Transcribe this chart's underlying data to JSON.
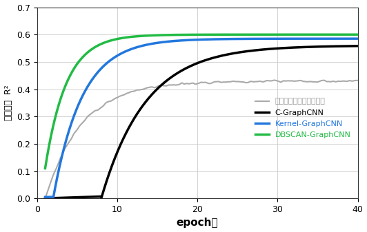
{
  "xlabel": "epoch数",
  "ylabel": "決定係数  R²",
  "xlim": [
    0,
    40
  ],
  "ylim": [
    0,
    0.7
  ],
  "xticks": [
    0,
    10,
    20,
    30,
    40
  ],
  "yticks": [
    0,
    0.1,
    0.2,
    0.3,
    0.4,
    0.5,
    0.6,
    0.7
  ],
  "series": {
    "neural": {
      "label": "ニューラルネットワーク",
      "color": "#aaaaaa",
      "linewidth": 1.5,
      "linestyle": "-"
    },
    "cgraph": {
      "label": "C-GraphCNN",
      "color": "#000000",
      "linewidth": 2.5,
      "linestyle": "-"
    },
    "kernel": {
      "label": "Kernel-GraphCNN",
      "color": "#2277dd",
      "linewidth": 2.5,
      "linestyle": "-"
    },
    "dbscan": {
      "label": "DBSCAN-GraphCNN",
      "color": "#22bb44",
      "linewidth": 2.5,
      "linestyle": "-"
    }
  },
  "background_color": "#ffffff",
  "grid_color": "#cccccc"
}
